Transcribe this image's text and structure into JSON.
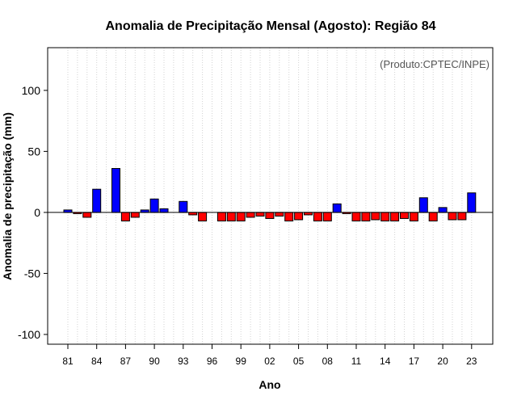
{
  "chart_data": {
    "type": "bar",
    "title": "Anomalia de Precipitação Mensal (Agosto): Região 84",
    "xlabel": "Ano",
    "ylabel": "Anomalia de precipitação (mm)",
    "credit": "(Produto:CPTEC/INPE)",
    "ylim": [
      -108,
      135
    ],
    "yticks": [
      -100,
      -50,
      0,
      50,
      100
    ],
    "ytick_labels": [
      "-100",
      "-50",
      "0",
      "50",
      "100"
    ],
    "x": [
      1981,
      1982,
      1983,
      1984,
      1985,
      1986,
      1987,
      1988,
      1989,
      1990,
      1991,
      1992,
      1993,
      1994,
      1995,
      1996,
      1997,
      1998,
      1999,
      2000,
      2001,
      2002,
      2003,
      2004,
      2005,
      2006,
      2007,
      2008,
      2009,
      2010,
      2011,
      2012,
      2013,
      2014,
      2015,
      2016,
      2017,
      2018,
      2019,
      2020,
      2021,
      2022,
      2023
    ],
    "values": [
      2,
      -1,
      -4,
      19,
      0,
      36,
      -7,
      -4,
      2,
      11,
      3,
      0,
      9,
      -2,
      -7,
      0,
      -7,
      -7,
      -7,
      -4,
      -3,
      -5,
      -3,
      -7,
      -6,
      -2,
      -7,
      -7,
      7,
      -1,
      -7,
      -7,
      -6,
      -7,
      -7,
      -5,
      -7,
      12,
      -7,
      4,
      -6,
      -6,
      16
    ],
    "xtick_years": [
      1981,
      1984,
      1987,
      1990,
      1993,
      1996,
      1999,
      2002,
      2005,
      2008,
      2011,
      2014,
      2017,
      2020,
      2023
    ],
    "xtick_labels": [
      "81",
      "84",
      "87",
      "90",
      "93",
      "96",
      "99",
      "02",
      "05",
      "08",
      "11",
      "14",
      "17",
      "20",
      "23"
    ],
    "colors": {
      "positive": "#0000ff",
      "negative": "#ff0000",
      "grid": "#d3d3d3"
    },
    "grid": "vertical-dotted",
    "zero_line": true
  }
}
